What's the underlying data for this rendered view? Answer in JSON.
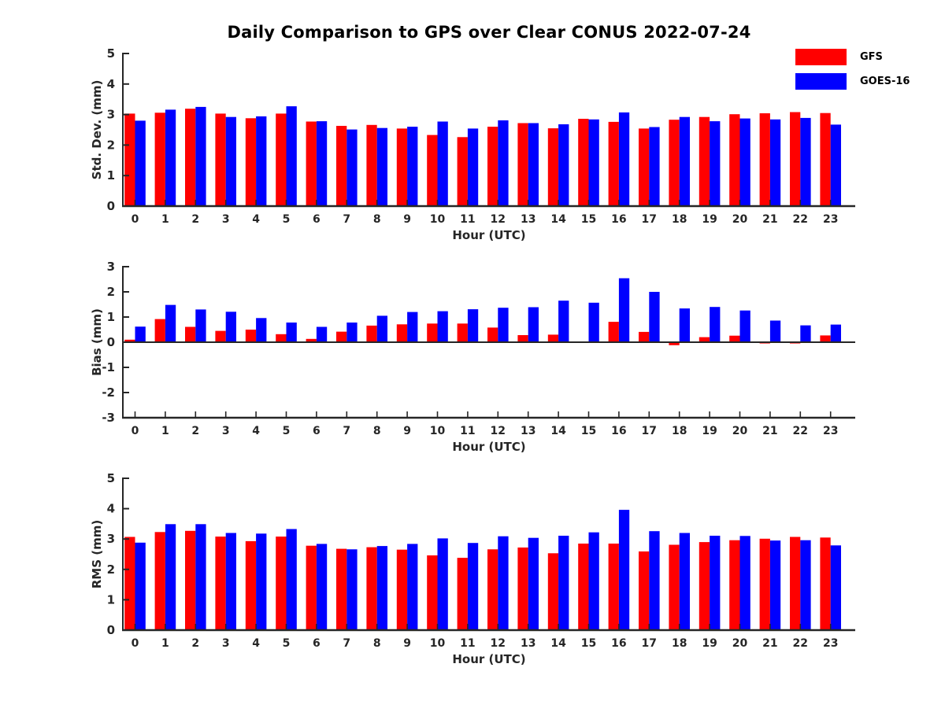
{
  "title": "Daily Comparison to GPS over Clear CONUS 2022-07-24",
  "legend": {
    "items": [
      {
        "label": "GFS",
        "color": "#ff0000"
      },
      {
        "label": "GOES-16",
        "color": "#0000ff"
      }
    ]
  },
  "colors": {
    "axis": "#262626",
    "tick_text": "#262626",
    "gfs": "#ff0000",
    "goes16": "#0000ff",
    "background": "#ffffff"
  },
  "chart_data": [
    {
      "id": "std-dev",
      "type": "bar",
      "ylabel": "Std. Dev. (mm)",
      "xlabel": "Hour (UTC)",
      "ylim": [
        0,
        5
      ],
      "yticks": [
        0,
        1,
        2,
        3,
        4,
        5
      ],
      "grid": false,
      "legend_position": "top-right-outside",
      "categories": [
        0,
        1,
        2,
        3,
        4,
        5,
        6,
        7,
        8,
        9,
        10,
        11,
        12,
        13,
        14,
        15,
        16,
        17,
        18,
        19,
        20,
        21,
        22,
        23
      ],
      "series": [
        {
          "name": "GFS",
          "color": "#ff0000",
          "values": [
            3.03,
            3.06,
            3.19,
            3.03,
            2.88,
            3.03,
            2.77,
            2.63,
            2.66,
            2.54,
            2.33,
            2.26,
            2.6,
            2.72,
            2.55,
            2.86,
            2.76,
            2.54,
            2.83,
            2.92,
            3.01,
            3.04,
            3.08,
            3.05
          ]
        },
        {
          "name": "GOES-16",
          "color": "#0000ff",
          "values": [
            2.8,
            3.16,
            3.25,
            2.92,
            2.94,
            3.27,
            2.78,
            2.51,
            2.56,
            2.6,
            2.77,
            2.54,
            2.81,
            2.72,
            2.68,
            2.84,
            3.07,
            2.59,
            2.92,
            2.78,
            2.87,
            2.84,
            2.89,
            2.67
          ]
        }
      ]
    },
    {
      "id": "bias",
      "type": "bar",
      "ylabel": "Bias (mm)",
      "xlabel": "Hour (UTC)",
      "ylim": [
        -3,
        3
      ],
      "yticks": [
        -3,
        -2,
        -1,
        0,
        1,
        2,
        3
      ],
      "grid": false,
      "categories": [
        0,
        1,
        2,
        3,
        4,
        5,
        6,
        7,
        8,
        9,
        10,
        11,
        12,
        13,
        14,
        15,
        16,
        17,
        18,
        19,
        20,
        21,
        22,
        23
      ],
      "series": [
        {
          "name": "GFS",
          "color": "#ff0000",
          "values": [
            0.1,
            0.92,
            0.61,
            0.45,
            0.5,
            0.32,
            0.13,
            0.42,
            0.66,
            0.71,
            0.74,
            0.74,
            0.58,
            0.28,
            0.3,
            0.02,
            0.81,
            0.41,
            -0.12,
            0.2,
            0.26,
            -0.05,
            -0.05,
            0.27
          ]
        },
        {
          "name": "GOES-16",
          "color": "#0000ff",
          "values": [
            0.62,
            1.48,
            1.3,
            1.21,
            0.96,
            0.78,
            0.61,
            0.78,
            1.05,
            1.2,
            1.23,
            1.31,
            1.37,
            1.39,
            1.65,
            1.57,
            2.54,
            2.0,
            1.34,
            1.4,
            1.26,
            0.86,
            0.67,
            0.7
          ]
        }
      ]
    },
    {
      "id": "rms",
      "type": "bar",
      "ylabel": "RMS (mm)",
      "xlabel": "Hour (UTC)",
      "ylim": [
        0,
        5
      ],
      "yticks": [
        0,
        1,
        2,
        3,
        4,
        5
      ],
      "grid": false,
      "categories": [
        0,
        1,
        2,
        3,
        4,
        5,
        6,
        7,
        8,
        9,
        10,
        11,
        12,
        13,
        14,
        15,
        16,
        17,
        18,
        19,
        20,
        21,
        22,
        23
      ],
      "series": [
        {
          "name": "GFS",
          "color": "#ff0000",
          "values": [
            3.07,
            3.23,
            3.27,
            3.08,
            2.93,
            3.08,
            2.78,
            2.68,
            2.73,
            2.65,
            2.46,
            2.38,
            2.66,
            2.72,
            2.53,
            2.85,
            2.85,
            2.59,
            2.81,
            2.9,
            2.96,
            3.01,
            3.07,
            3.05
          ]
        },
        {
          "name": "GOES-16",
          "color": "#0000ff",
          "values": [
            2.88,
            3.49,
            3.49,
            3.2,
            3.18,
            3.33,
            2.84,
            2.66,
            2.77,
            2.84,
            3.02,
            2.87,
            3.09,
            3.04,
            3.11,
            3.22,
            3.96,
            3.26,
            3.2,
            3.11,
            3.1,
            2.95,
            2.96,
            2.79
          ]
        }
      ]
    }
  ]
}
